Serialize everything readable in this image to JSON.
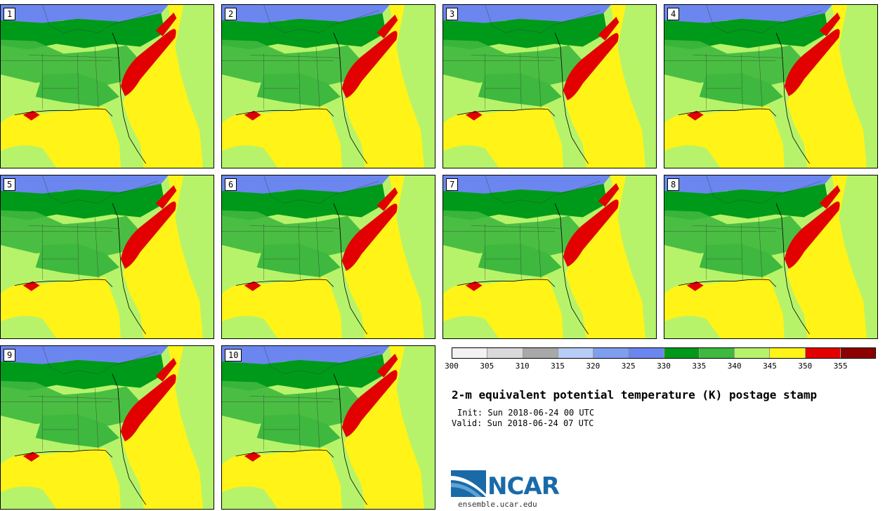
{
  "panels": [
    {
      "label": "1"
    },
    {
      "label": "2"
    },
    {
      "label": "3"
    },
    {
      "label": "4"
    },
    {
      "label": "5"
    },
    {
      "label": "6"
    },
    {
      "label": "7"
    },
    {
      "label": "8"
    },
    {
      "label": "9"
    },
    {
      "label": "10"
    }
  ],
  "legend": {
    "colors": [
      "#f2f2f2",
      "#d9d9d9",
      "#a8a8a8",
      "#b8ccf8",
      "#7f9ef0",
      "#6b86ee",
      "#009a1a",
      "#3eb83e",
      "#b6f36a",
      "#fff318",
      "#e20000",
      "#8b0000"
    ],
    "ticks": [
      "300",
      "305",
      "310",
      "315",
      "320",
      "325",
      "330",
      "335",
      "340",
      "345",
      "350",
      "355"
    ]
  },
  "title": "2-m equivalent potential temperature (K) postage stamp",
  "init": "Init: Sun 2018-06-24 00 UTC",
  "valid": "Valid: Sun 2018-06-24 07 UTC",
  "logo": {
    "text": "NCAR"
  },
  "site": "ensemble.ucar.edu"
}
